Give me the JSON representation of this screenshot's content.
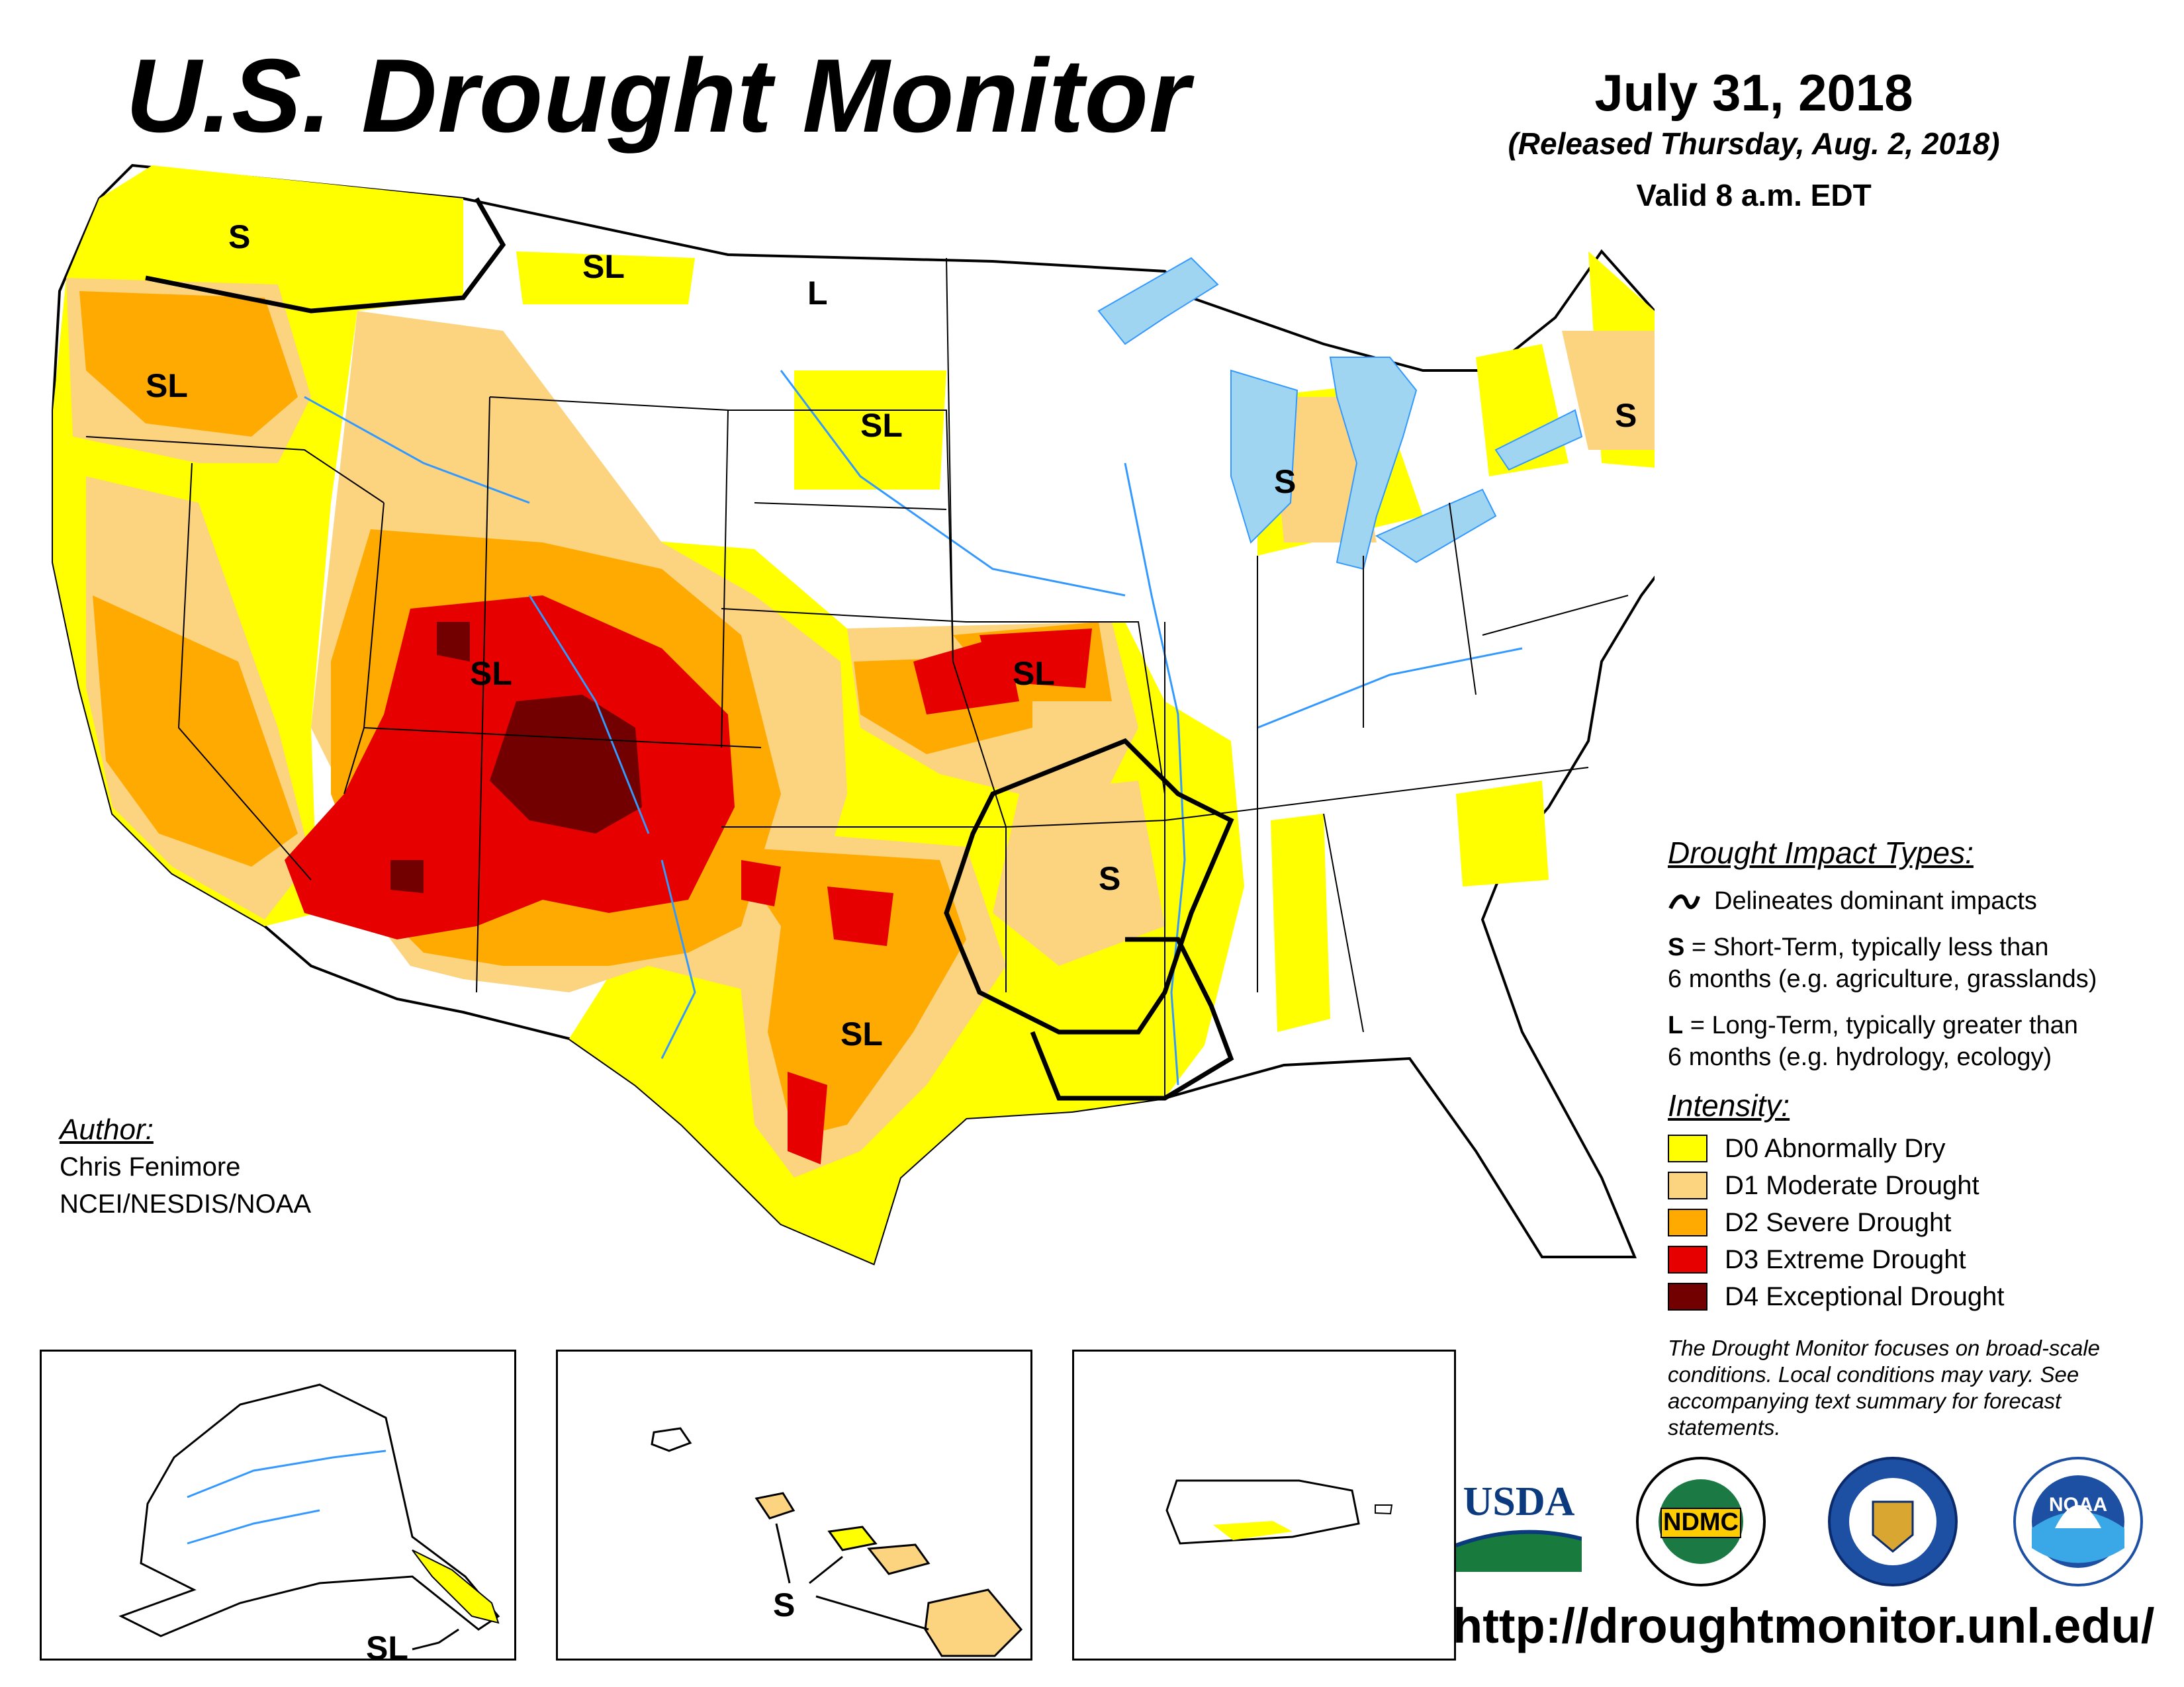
{
  "title": "U.S. Drought Monitor",
  "date": "July 31, 2018",
  "released": "(Released Thursday, Aug. 2, 2018)",
  "valid": "Valid 8 a.m. EDT",
  "labels": {
    "wa": "S",
    "mt": "SL",
    "nd": "L",
    "sd": "SL",
    "or": "SL",
    "mi": "S",
    "ny": "S",
    "ut": "SL",
    "mo": "SL",
    "ar": "S",
    "tx": "SL",
    "alaska": "SL",
    "hawaii": "S"
  },
  "legend": {
    "impact_title": "Drought Impact Types:",
    "delineates": "Delineates dominant impacts",
    "short_key": "S",
    "short_desc1": " = Short-Term, typically less than",
    "short_desc2": "6 months (e.g. agriculture, grasslands)",
    "long_key": "L",
    "long_desc1": " = Long-Term, typically greater than",
    "long_desc2": "6 months (e.g. hydrology, ecology)",
    "intensity_title": "Intensity:",
    "items": [
      {
        "label": "D0 Abnormally Dry",
        "color": "#ffff00"
      },
      {
        "label": "D1 Moderate Drought",
        "color": "#fcd37f"
      },
      {
        "label": "D2 Severe Drought",
        "color": "#ffaa00"
      },
      {
        "label": "D3 Extreme Drought",
        "color": "#e60000"
      },
      {
        "label": "D4 Exceptional Drought",
        "color": "#730000"
      }
    ]
  },
  "note": "The Drought Monitor focuses on broad-scale conditions. Local conditions may vary. See accompanying text summary for forecast statements.",
  "author": {
    "label": "Author:",
    "name": "Chris Fenimore",
    "org": "NCEI/NESDIS/NOAA"
  },
  "logos": {
    "usda": "USDA",
    "ndmc": "NDMC",
    "noaa": "NOAA"
  },
  "url": "http://droughtmonitor.unl.edu/",
  "colors": {
    "water": "#9fd5f0",
    "river": "#3399ff"
  }
}
